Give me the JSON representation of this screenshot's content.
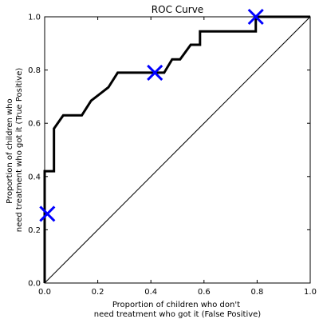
{
  "chart_data": {
    "type": "line",
    "title": "ROC Curve",
    "xlabel": [
      "Proportion of children who don't",
      "need treatment who got it (False Positive)"
    ],
    "ylabel": [
      "Proportion of children who",
      "need treatment who got it (True Positive)"
    ],
    "xlim": [
      0.0,
      1.0
    ],
    "ylim": [
      0.0,
      1.0
    ],
    "xticks": [
      "0.0",
      "0.2",
      "0.4",
      "0.6",
      "0.8",
      "1.0"
    ],
    "yticks": [
      "0.0",
      "0.2",
      "0.4",
      "0.6",
      "0.8",
      "1.0"
    ],
    "grid": false,
    "series": [
      {
        "role": "roc-curve",
        "color": "#000000",
        "x": [
          0.0,
          0.0,
          0.0,
          0.035,
          0.035,
          0.07,
          0.14,
          0.175,
          0.24,
          0.275,
          0.45,
          0.48,
          0.51,
          0.55,
          0.585,
          0.585,
          0.795,
          0.795,
          1.0
        ],
        "y": [
          0.0,
          0.42,
          0.42,
          0.42,
          0.58,
          0.63,
          0.63,
          0.685,
          0.735,
          0.79,
          0.79,
          0.84,
          0.84,
          0.895,
          0.895,
          0.945,
          0.945,
          1.0,
          1.0
        ]
      },
      {
        "role": "diagonal",
        "color": "#000000",
        "x": [
          0.0,
          1.0
        ],
        "y": [
          0.0,
          1.0
        ]
      }
    ],
    "markers": {
      "symbol": "x",
      "color": "#0000ff",
      "points": [
        {
          "x": 0.01,
          "y": 0.26
        },
        {
          "x": 0.415,
          "y": 0.79
        },
        {
          "x": 0.795,
          "y": 1.0
        }
      ]
    }
  }
}
